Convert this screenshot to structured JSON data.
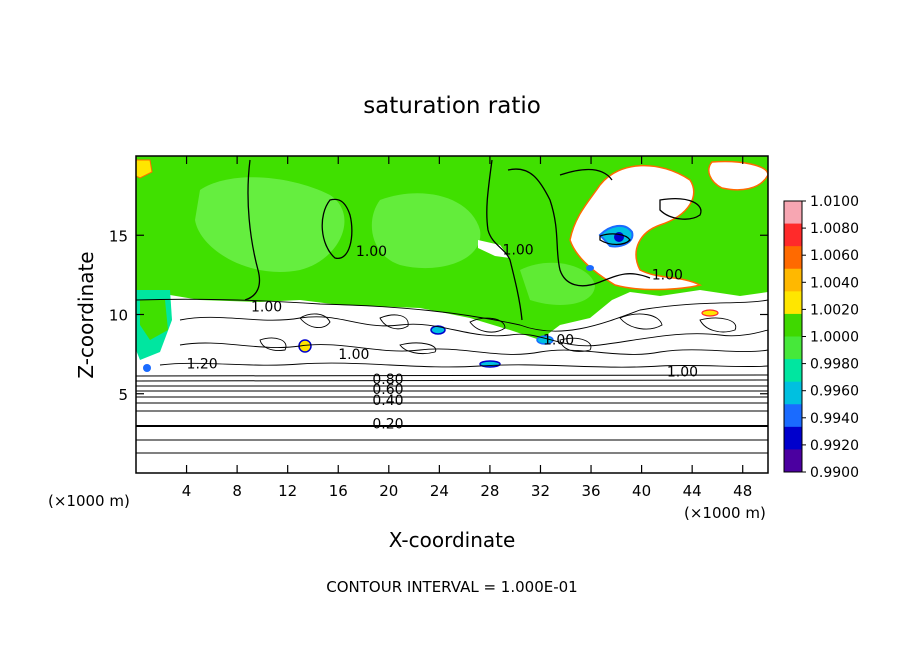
{
  "chart_data": {
    "type": "heatmap",
    "title": "saturation ratio",
    "xlabel": "X-coordinate",
    "ylabel": "Z-coordinate",
    "x_unit": "(×1000 m)",
    "y_unit": "(×1000 m)",
    "xlim": [
      0,
      50
    ],
    "ylim": [
      0,
      20
    ],
    "xticks": [
      4,
      8,
      12,
      16,
      20,
      24,
      28,
      32,
      36,
      40,
      44,
      48
    ],
    "yticks": [
      5,
      10,
      15
    ],
    "footer": "CONTOUR INTERVAL = 1.000E-01",
    "colorbar": {
      "labels": [
        "1.0100",
        "1.0080",
        "1.0060",
        "1.0040",
        "1.0020",
        "1.0000",
        "0.9980",
        "0.9960",
        "0.9940",
        "0.9920",
        "0.9900"
      ],
      "colors": [
        "#f7a6b2",
        "#ff2a2a",
        "#ff6a00",
        "#ffb800",
        "#ffe600",
        "#3fd800",
        "#46e83a",
        "#00e6a0",
        "#00c0e0",
        "#1a6bff",
        "#0000cc",
        "#4b00a0"
      ]
    },
    "contour_labels": [
      {
        "text": "1.00",
        "x": 17.4,
        "y": 13.7
      },
      {
        "text": "1.00",
        "x": 16.0,
        "y": 7.2
      },
      {
        "text": "1.00",
        "x": 9.1,
        "y": 10.2
      },
      {
        "text": "1.20",
        "x": 4.0,
        "y": 6.6
      },
      {
        "text": "0.80",
        "x": 18.7,
        "y": 5.6
      },
      {
        "text": "0.60",
        "x": 18.7,
        "y": 5.0
      },
      {
        "text": "0.40",
        "x": 18.7,
        "y": 4.3
      },
      {
        "text": "0.20",
        "x": 18.7,
        "y": 2.8
      },
      {
        "text": "1.00",
        "x": 29.0,
        "y": 13.8
      },
      {
        "text": "1.00",
        "x": 32.2,
        "y": 8.1
      },
      {
        "text": "1.00",
        "x": 40.8,
        "y": 12.2
      },
      {
        "text": "1.00",
        "x": 42.0,
        "y": 6.1
      }
    ]
  }
}
